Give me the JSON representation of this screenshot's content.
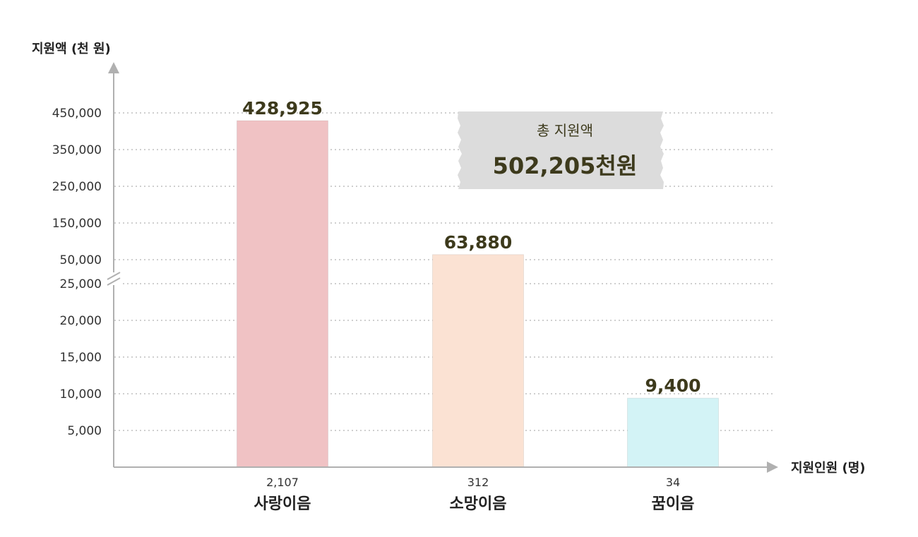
{
  "chart_data": {
    "type": "bar",
    "ylabel": "지원액 (천 원)",
    "xlabel": "지원인원 (명)",
    "y_scale": "broken (upper 50,000–450,000 / lower 0–25,000)",
    "ticks": [
      "5,000",
      "10,000",
      "15,000",
      "20,000",
      "25,000",
      "50,000",
      "150,000",
      "250,000",
      "350,000",
      "450,000"
    ],
    "categories": [
      "사랑이음",
      "소망이음",
      "꿈이음"
    ],
    "counts": [
      "2,107",
      "312",
      "34"
    ],
    "values": [
      428925,
      63880,
      9400
    ],
    "value_labels": [
      "428,925",
      "63,880",
      "9,400"
    ],
    "grid": true,
    "bar_colors": [
      "#f0c2c4",
      "#fbe2d3",
      "#d3f3f6"
    ],
    "total": {
      "label": "총 지원액",
      "value": "502,205천원"
    }
  }
}
